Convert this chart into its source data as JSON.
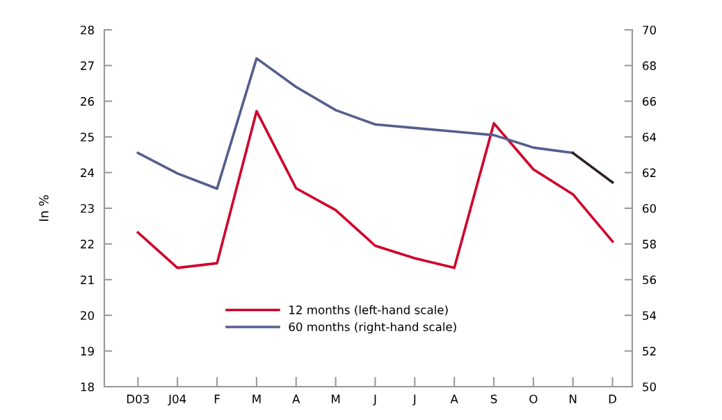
{
  "chart_data": {
    "type": "line",
    "ylabel": "In %",
    "categories": [
      "D03",
      "J04",
      "F",
      "M",
      "A",
      "M",
      "J",
      "J",
      "A",
      "S",
      "O",
      "N",
      "D"
    ],
    "series": [
      {
        "name": "12 months (left-hand scale)",
        "color": "#d0002a",
        "values": [
          22.32,
          21.33,
          21.46,
          25.72,
          23.56,
          22.95,
          21.95,
          21.6,
          21.33,
          25.38,
          24.09,
          23.39,
          22.07
        ]
      },
      {
        "name": "60 months (right-hand scale)",
        "color": "#555e8e",
        "axis": "y2",
        "values": [
          63.1,
          61.95,
          61.1,
          68.4,
          66.8,
          65.5,
          64.7,
          64.5,
          64.3,
          64.1,
          63.4,
          63.1,
          null
        ]
      },
      {
        "color": "#2e2128",
        "axis": "y2",
        "values": [
          null,
          null,
          null,
          null,
          null,
          null,
          null,
          null,
          null,
          null,
          null,
          63.1,
          61.45
        ]
      }
    ],
    "ylim": [
      18,
      28
    ],
    "yticks": [
      18,
      19,
      20,
      21,
      22,
      23,
      24,
      25,
      26,
      27,
      28
    ],
    "y2lim": [
      50,
      70
    ],
    "y2ticks": [
      50,
      52,
      54,
      56,
      58,
      60,
      62,
      64,
      66,
      68,
      70
    ],
    "grid": false,
    "legend": "bottom",
    "marker": "none",
    "line_style": "solid"
  }
}
